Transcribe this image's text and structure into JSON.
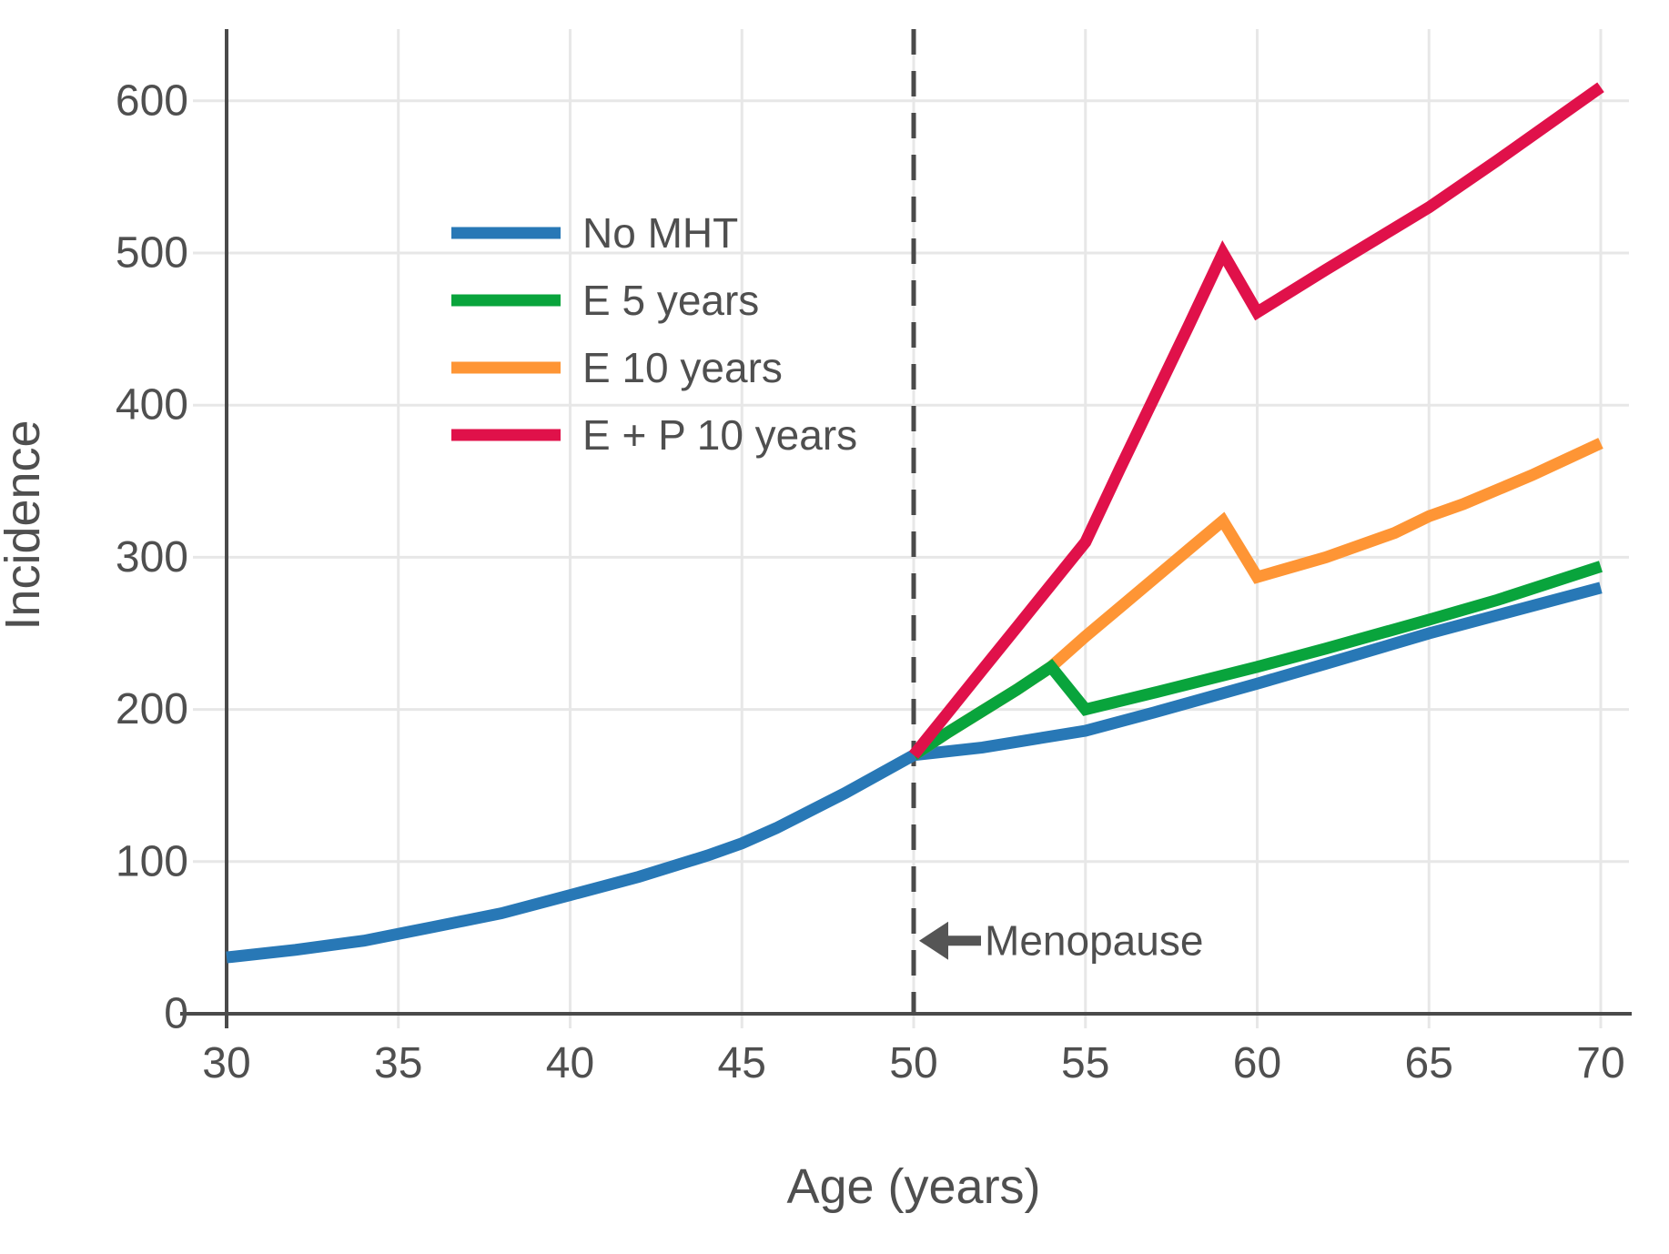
{
  "chart_data": {
    "type": "line",
    "title": "",
    "xlabel": "Age (years)",
    "ylabel": "Incidence",
    "xlim": [
      30,
      70
    ],
    "ylim": [
      0,
      650
    ],
    "x_ticks": [
      30,
      35,
      40,
      45,
      50,
      55,
      60,
      65,
      70
    ],
    "y_ticks": [
      0,
      100,
      200,
      300,
      400,
      500,
      600
    ],
    "grid": true,
    "legend_position": "upper-left-inside",
    "vline": {
      "x": 50,
      "style": "dashed"
    },
    "annotation": {
      "text": "Menopause",
      "points_to_x": 50,
      "y_value": 48
    },
    "series": [
      {
        "name": "No MHT",
        "color": "#2878b6",
        "points": [
          [
            30,
            37
          ],
          [
            32,
            42
          ],
          [
            34,
            48
          ],
          [
            36,
            57
          ],
          [
            38,
            66
          ],
          [
            40,
            78
          ],
          [
            42,
            90
          ],
          [
            44,
            104
          ],
          [
            45,
            112
          ],
          [
            46,
            122
          ],
          [
            48,
            145
          ],
          [
            50,
            170
          ],
          [
            52,
            175
          ],
          [
            55,
            186
          ],
          [
            57,
            198
          ],
          [
            60,
            217
          ],
          [
            62,
            230
          ],
          [
            65,
            250
          ],
          [
            67,
            262
          ],
          [
            70,
            280
          ]
        ]
      },
      {
        "name": "E 5 years",
        "color": "#09a43c",
        "points": [
          [
            50,
            170
          ],
          [
            51,
            185
          ],
          [
            52,
            199
          ],
          [
            53,
            213
          ],
          [
            54,
            228
          ],
          [
            55,
            200
          ],
          [
            57,
            211
          ],
          [
            60,
            228
          ],
          [
            62,
            240
          ],
          [
            65,
            259
          ],
          [
            67,
            272
          ],
          [
            70,
            294
          ]
        ]
      },
      {
        "name": "E 10 years",
        "color": "#fe9535",
        "points": [
          [
            50,
            170
          ],
          [
            51,
            185
          ],
          [
            52,
            199
          ],
          [
            53,
            213
          ],
          [
            54,
            228
          ],
          [
            55,
            248
          ],
          [
            56,
            267
          ],
          [
            57,
            286
          ],
          [
            58,
            305
          ],
          [
            59,
            324
          ],
          [
            60,
            287
          ],
          [
            62,
            300
          ],
          [
            64,
            316
          ],
          [
            65,
            327
          ],
          [
            66,
            335
          ],
          [
            68,
            354
          ],
          [
            70,
            375
          ]
        ]
      },
      {
        "name": "E + P 10 years",
        "color": "#e0114a",
        "points": [
          [
            50,
            170
          ],
          [
            51,
            198
          ],
          [
            52,
            226
          ],
          [
            53,
            254
          ],
          [
            54,
            282
          ],
          [
            55,
            310
          ],
          [
            56,
            358
          ],
          [
            57,
            405
          ],
          [
            58,
            452
          ],
          [
            59,
            500
          ],
          [
            60,
            461
          ],
          [
            62,
            489
          ],
          [
            65,
            530
          ],
          [
            67,
            561
          ],
          [
            70,
            609
          ]
        ]
      }
    ],
    "colors": {
      "axis": "#4a4a4a",
      "text": "#4f4f4f",
      "grid": "#e7e7e7",
      "dashed_line": "#4a4a4a",
      "annotation_arrow": "#555555",
      "background": "#ffffff"
    }
  }
}
